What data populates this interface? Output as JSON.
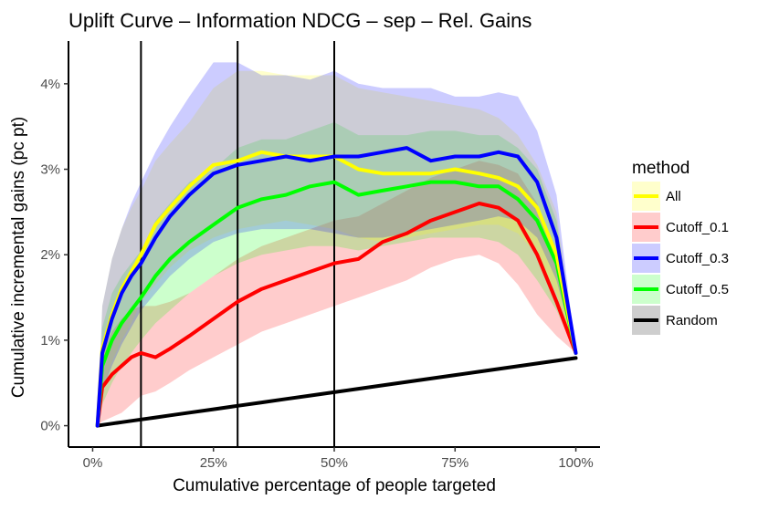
{
  "chart_data": {
    "type": "line",
    "title": "Uplift Curve –  Information NDCG  –  sep  –  Rel. Gains",
    "xlabel": "Cumulative percentage of people targeted",
    "ylabel": "Cumulative incremental gains (pc pt)",
    "xlim": [
      -0.05,
      1.05
    ],
    "ylim": [
      -0.25,
      4.5
    ],
    "x_ticks": [
      0,
      0.25,
      0.5,
      0.75,
      1.0
    ],
    "x_tick_labels": [
      "0%",
      "25%",
      "50%",
      "75%",
      "100%"
    ],
    "y_ticks": [
      0,
      1,
      2,
      3,
      4
    ],
    "y_tick_labels": [
      "0%",
      "1%",
      "2%",
      "3%",
      "4%"
    ],
    "vlines": [
      0.1,
      0.3,
      0.5
    ],
    "legend": {
      "title": "method",
      "position": "right",
      "entries": [
        "All",
        "Cutoff_0.1",
        "Cutoff_0.3",
        "Cutoff_0.5",
        "Random"
      ]
    },
    "x": [
      0.01,
      0.02,
      0.04,
      0.06,
      0.08,
      0.1,
      0.13,
      0.16,
      0.2,
      0.25,
      0.3,
      0.35,
      0.4,
      0.45,
      0.5,
      0.55,
      0.6,
      0.65,
      0.7,
      0.75,
      0.8,
      0.84,
      0.88,
      0.92,
      0.96,
      1.0
    ],
    "series": [
      {
        "name": "All",
        "color": "#ffff00",
        "values": [
          0.0,
          0.9,
          1.3,
          1.6,
          1.8,
          2.0,
          2.35,
          2.55,
          2.8,
          3.05,
          3.1,
          3.2,
          3.15,
          3.15,
          3.15,
          3.0,
          2.95,
          2.95,
          2.95,
          3.0,
          2.95,
          2.9,
          2.8,
          2.55,
          2.0,
          0.85
        ],
        "lower": [
          0.0,
          0.4,
          0.75,
          1.0,
          1.2,
          1.45,
          1.65,
          1.85,
          2.05,
          2.2,
          2.3,
          2.35,
          2.4,
          2.35,
          2.3,
          2.2,
          2.15,
          2.2,
          2.25,
          2.3,
          2.35,
          2.35,
          2.25,
          2.0,
          1.55,
          0.85
        ],
        "upper": [
          0.0,
          1.4,
          1.95,
          2.3,
          2.55,
          2.75,
          3.1,
          3.3,
          3.55,
          3.95,
          4.15,
          4.15,
          4.1,
          4.1,
          4.1,
          3.95,
          3.9,
          3.85,
          3.8,
          3.75,
          3.7,
          3.6,
          3.4,
          3.05,
          2.5,
          0.85
        ]
      },
      {
        "name": "Cutoff_0.1",
        "color": "#ff0000",
        "values": [
          0.0,
          0.45,
          0.6,
          0.7,
          0.8,
          0.85,
          0.8,
          0.9,
          1.05,
          1.25,
          1.45,
          1.6,
          1.7,
          1.8,
          1.9,
          1.95,
          2.15,
          2.25,
          2.4,
          2.5,
          2.6,
          2.55,
          2.4,
          2.0,
          1.45,
          0.85
        ],
        "lower": [
          0.0,
          0.05,
          0.1,
          0.15,
          0.25,
          0.35,
          0.4,
          0.5,
          0.65,
          0.8,
          0.95,
          1.1,
          1.2,
          1.3,
          1.4,
          1.5,
          1.6,
          1.7,
          1.85,
          1.95,
          2.0,
          1.9,
          1.65,
          1.3,
          1.05,
          0.85
        ],
        "upper": [
          0.0,
          0.85,
          1.1,
          1.25,
          1.35,
          1.4,
          1.4,
          1.45,
          1.55,
          1.75,
          1.95,
          2.1,
          2.2,
          2.3,
          2.4,
          2.45,
          2.6,
          2.75,
          2.9,
          3.0,
          3.1,
          3.05,
          2.95,
          2.6,
          2.0,
          0.85
        ]
      },
      {
        "name": "Cutoff_0.3",
        "color": "#0000ff",
        "values": [
          0.0,
          0.85,
          1.25,
          1.55,
          1.75,
          1.9,
          2.2,
          2.45,
          2.7,
          2.95,
          3.05,
          3.1,
          3.15,
          3.1,
          3.15,
          3.15,
          3.2,
          3.25,
          3.1,
          3.15,
          3.15,
          3.2,
          3.15,
          2.85,
          2.2,
          0.85
        ],
        "lower": [
          0.0,
          0.4,
          0.7,
          0.95,
          1.15,
          1.35,
          1.55,
          1.75,
          1.95,
          2.15,
          2.25,
          2.3,
          2.3,
          2.3,
          2.25,
          2.2,
          2.2,
          2.25,
          2.3,
          2.35,
          2.4,
          2.45,
          2.4,
          2.2,
          1.7,
          0.85
        ],
        "upper": [
          0.0,
          1.4,
          1.95,
          2.3,
          2.6,
          2.85,
          3.2,
          3.5,
          3.85,
          4.25,
          4.25,
          4.1,
          4.1,
          4.05,
          4.15,
          4.0,
          3.95,
          3.95,
          3.95,
          3.85,
          3.85,
          3.9,
          3.85,
          3.45,
          2.7,
          0.85
        ]
      },
      {
        "name": "Cutoff_0.5",
        "color": "#00ff00",
        "values": [
          0.0,
          0.7,
          1.0,
          1.2,
          1.35,
          1.5,
          1.75,
          1.95,
          2.15,
          2.35,
          2.55,
          2.65,
          2.7,
          2.8,
          2.85,
          2.7,
          2.75,
          2.8,
          2.85,
          2.85,
          2.8,
          2.8,
          2.65,
          2.4,
          1.9,
          0.85
        ],
        "lower": [
          0.0,
          0.25,
          0.5,
          0.7,
          0.85,
          1.0,
          1.2,
          1.35,
          1.55,
          1.75,
          1.9,
          2.0,
          2.05,
          2.1,
          2.1,
          2.05,
          2.1,
          2.15,
          2.2,
          2.2,
          2.2,
          2.15,
          2.0,
          1.7,
          1.35,
          0.85
        ],
        "upper": [
          0.0,
          1.15,
          1.55,
          1.75,
          1.9,
          2.05,
          2.4,
          2.6,
          2.85,
          3.0,
          3.25,
          3.35,
          3.35,
          3.45,
          3.55,
          3.4,
          3.4,
          3.4,
          3.45,
          3.45,
          3.4,
          3.4,
          3.25,
          3.0,
          2.4,
          0.85
        ]
      },
      {
        "name": "Random",
        "color": "#000000",
        "values": [
          0.0,
          0.008,
          0.024,
          0.04,
          0.056,
          0.072,
          0.096,
          0.12,
          0.152,
          0.192,
          0.232,
          0.272,
          0.312,
          0.352,
          0.392,
          0.432,
          0.472,
          0.512,
          0.552,
          0.592,
          0.632,
          0.664,
          0.696,
          0.728,
          0.76,
          0.792
        ]
      }
    ]
  }
}
